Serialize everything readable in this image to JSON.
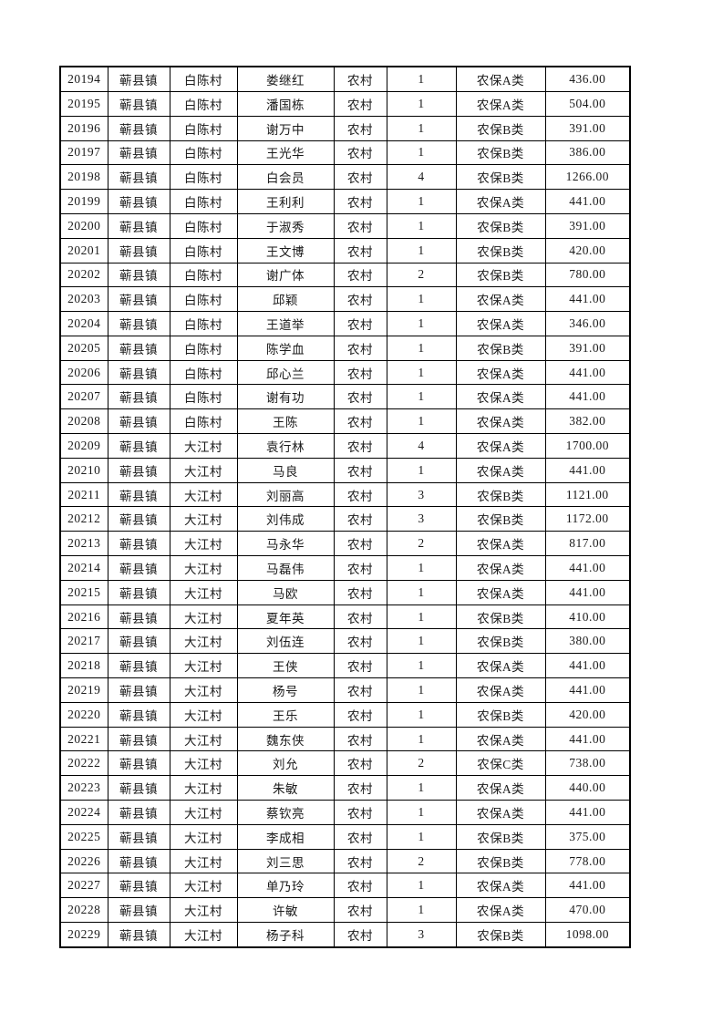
{
  "page": {
    "background_color": "#ffffff",
    "border_color": "#000000",
    "text_color": "#1a1a1a"
  },
  "table": {
    "rows": [
      [
        "20194",
        "蕲县镇",
        "白陈村",
        "娄继红",
        "农村",
        "1",
        "农保A类",
        "436.00"
      ],
      [
        "20195",
        "蕲县镇",
        "白陈村",
        "潘国栋",
        "农村",
        "1",
        "农保A类",
        "504.00"
      ],
      [
        "20196",
        "蕲县镇",
        "白陈村",
        "谢万中",
        "农村",
        "1",
        "农保B类",
        "391.00"
      ],
      [
        "20197",
        "蕲县镇",
        "白陈村",
        "王光华",
        "农村",
        "1",
        "农保B类",
        "386.00"
      ],
      [
        "20198",
        "蕲县镇",
        "白陈村",
        "白会员",
        "农村",
        "4",
        "农保B类",
        "1266.00"
      ],
      [
        "20199",
        "蕲县镇",
        "白陈村",
        "王利利",
        "农村",
        "1",
        "农保A类",
        "441.00"
      ],
      [
        "20200",
        "蕲县镇",
        "白陈村",
        "于淑秀",
        "农村",
        "1",
        "农保B类",
        "391.00"
      ],
      [
        "20201",
        "蕲县镇",
        "白陈村",
        "王文博",
        "农村",
        "1",
        "农保B类",
        "420.00"
      ],
      [
        "20202",
        "蕲县镇",
        "白陈村",
        "谢广体",
        "农村",
        "2",
        "农保B类",
        "780.00"
      ],
      [
        "20203",
        "蕲县镇",
        "白陈村",
        "邱颖",
        "农村",
        "1",
        "农保A类",
        "441.00"
      ],
      [
        "20204",
        "蕲县镇",
        "白陈村",
        "王道举",
        "农村",
        "1",
        "农保A类",
        "346.00"
      ],
      [
        "20205",
        "蕲县镇",
        "白陈村",
        "陈学血",
        "农村",
        "1",
        "农保B类",
        "391.00"
      ],
      [
        "20206",
        "蕲县镇",
        "白陈村",
        "邱心兰",
        "农村",
        "1",
        "农保A类",
        "441.00"
      ],
      [
        "20207",
        "蕲县镇",
        "白陈村",
        "谢有功",
        "农村",
        "1",
        "农保A类",
        "441.00"
      ],
      [
        "20208",
        "蕲县镇",
        "白陈村",
        "王陈",
        "农村",
        "1",
        "农保A类",
        "382.00"
      ],
      [
        "20209",
        "蕲县镇",
        "大江村",
        "袁行林",
        "农村",
        "4",
        "农保A类",
        "1700.00"
      ],
      [
        "20210",
        "蕲县镇",
        "大江村",
        "马良",
        "农村",
        "1",
        "农保A类",
        "441.00"
      ],
      [
        "20211",
        "蕲县镇",
        "大江村",
        "刘丽高",
        "农村",
        "3",
        "农保B类",
        "1121.00"
      ],
      [
        "20212",
        "蕲县镇",
        "大江村",
        "刘伟成",
        "农村",
        "3",
        "农保B类",
        "1172.00"
      ],
      [
        "20213",
        "蕲县镇",
        "大江村",
        "马永华",
        "农村",
        "2",
        "农保A类",
        "817.00"
      ],
      [
        "20214",
        "蕲县镇",
        "大江村",
        "马磊伟",
        "农村",
        "1",
        "农保A类",
        "441.00"
      ],
      [
        "20215",
        "蕲县镇",
        "大江村",
        "马欧",
        "农村",
        "1",
        "农保A类",
        "441.00"
      ],
      [
        "20216",
        "蕲县镇",
        "大江村",
        "夏年英",
        "农村",
        "1",
        "农保B类",
        "410.00"
      ],
      [
        "20217",
        "蕲县镇",
        "大江村",
        "刘伍连",
        "农村",
        "1",
        "农保B类",
        "380.00"
      ],
      [
        "20218",
        "蕲县镇",
        "大江村",
        "王侠",
        "农村",
        "1",
        "农保A类",
        "441.00"
      ],
      [
        "20219",
        "蕲县镇",
        "大江村",
        "杨号",
        "农村",
        "1",
        "农保A类",
        "441.00"
      ],
      [
        "20220",
        "蕲县镇",
        "大江村",
        "王乐",
        "农村",
        "1",
        "农保B类",
        "420.00"
      ],
      [
        "20221",
        "蕲县镇",
        "大江村",
        "魏东侠",
        "农村",
        "1",
        "农保A类",
        "441.00"
      ],
      [
        "20222",
        "蕲县镇",
        "大江村",
        "刘允",
        "农村",
        "2",
        "农保C类",
        "738.00"
      ],
      [
        "20223",
        "蕲县镇",
        "大江村",
        "朱敏",
        "农村",
        "1",
        "农保A类",
        "440.00"
      ],
      [
        "20224",
        "蕲县镇",
        "大江村",
        "蔡钦亮",
        "农村",
        "1",
        "农保A类",
        "441.00"
      ],
      [
        "20225",
        "蕲县镇",
        "大江村",
        "李成相",
        "农村",
        "1",
        "农保B类",
        "375.00"
      ],
      [
        "20226",
        "蕲县镇",
        "大江村",
        "刘三思",
        "农村",
        "2",
        "农保B类",
        "778.00"
      ],
      [
        "20227",
        "蕲县镇",
        "大江村",
        "单乃玲",
        "农村",
        "1",
        "农保A类",
        "441.00"
      ],
      [
        "20228",
        "蕲县镇",
        "大江村",
        "许敏",
        "农村",
        "1",
        "农保A类",
        "470.00"
      ],
      [
        "20229",
        "蕲县镇",
        "大江村",
        "杨子科",
        "农村",
        "3",
        "农保B类",
        "1098.00"
      ]
    ]
  }
}
